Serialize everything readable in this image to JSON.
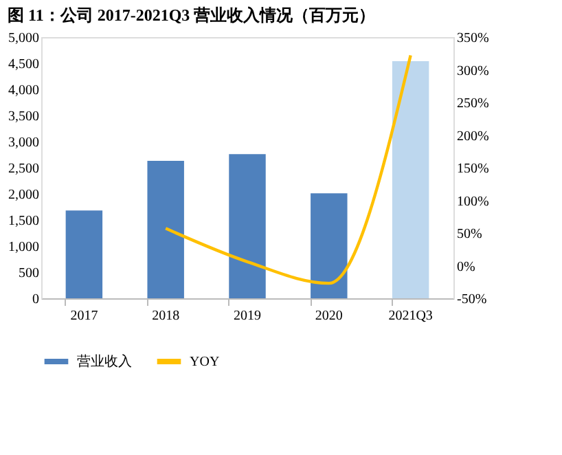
{
  "chart_data": {
    "type": "bar",
    "title": "图 11：公司 2017-2021Q3 营业收入情况（百万元）",
    "categories": [
      "2017",
      "2018",
      "2019",
      "2020",
      "2021Q3"
    ],
    "series": [
      {
        "name": "营业收入",
        "color": "#4f81bd",
        "colors": [
          "#4f81bd",
          "#4f81bd",
          "#4f81bd",
          "#4f81bd",
          "#bdd7ee"
        ],
        "values": [
          1680,
          2630,
          2760,
          2010,
          4540
        ]
      },
      {
        "name": "YOY",
        "type": "line",
        "axis": "y2",
        "color": "#ffc000",
        "values": [
          null,
          57,
          6,
          -27,
          322
        ]
      }
    ],
    "ylim": [
      0,
      5000
    ],
    "yticks": [
      0,
      500,
      {
        "value": 1000,
        "label": "1,000"
      },
      {
        "value": 1500,
        "label": "1,500"
      },
      {
        "value": 2000,
        "label": "2,000"
      },
      {
        "value": 2500,
        "label": "2,500"
      },
      {
        "value": 3000,
        "label": "3,000"
      },
      {
        "value": 3500,
        "label": "3,500"
      },
      {
        "value": 4000,
        "label": "4,000"
      },
      {
        "value": 4500,
        "label": "4,500"
      },
      {
        "value": 5000,
        "label": "5,000"
      }
    ],
    "y2lim": [
      -50,
      350
    ],
    "y2ticks": [
      {
        "value": -50,
        "label": "-50%"
      },
      {
        "value": 0,
        "label": "0%"
      },
      {
        "value": 50,
        "label": "50%"
      },
      {
        "value": 100,
        "label": "100%"
      },
      {
        "value": 150,
        "label": "150%"
      },
      {
        "value": 200,
        "label": "200%"
      },
      {
        "value": 250,
        "label": "250%"
      },
      {
        "value": 300,
        "label": "300%"
      },
      {
        "value": 350,
        "label": "350%"
      }
    ],
    "grid": false,
    "legend": "bottom",
    "marker": "none",
    "line_style": "solid"
  }
}
